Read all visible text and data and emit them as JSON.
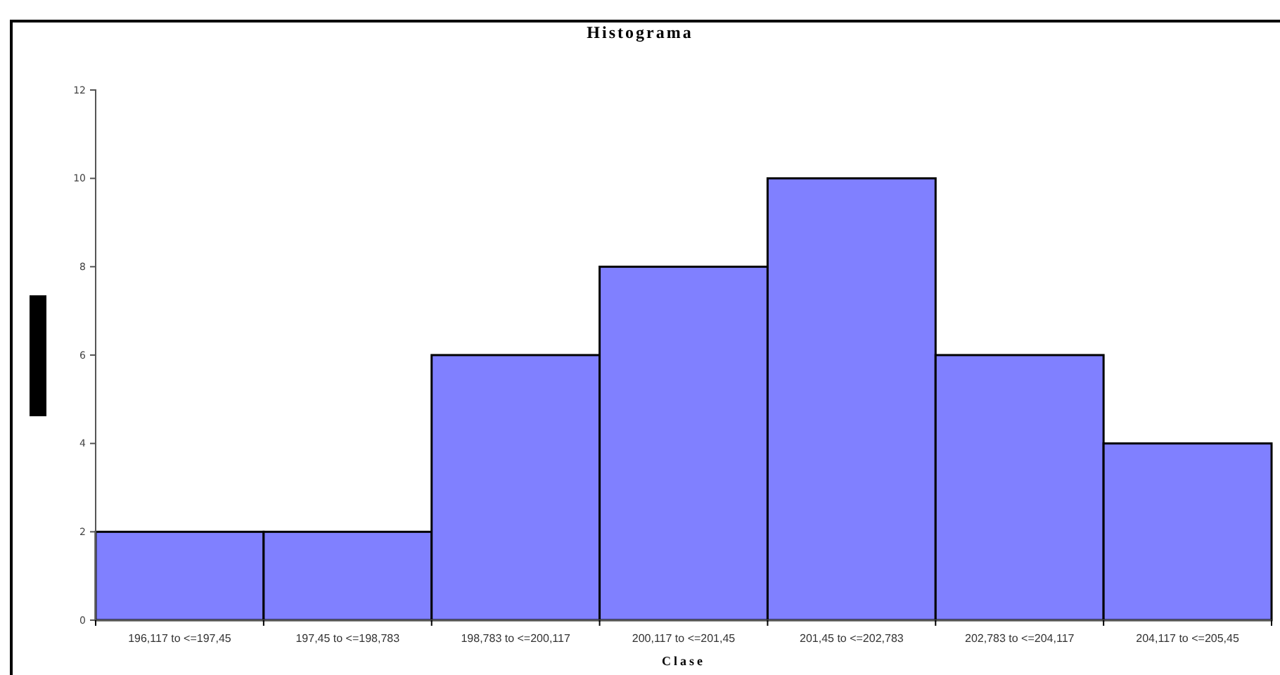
{
  "chart_data": {
    "type": "bar",
    "title": "Histograma",
    "xlabel": "Clase",
    "categories": [
      "196,117 to <=197,45",
      "197,45 to <=198,783",
      "198,783 to <=200,117",
      "200,117 to <=201,45",
      "201,45 to <=202,783",
      "202,783 to <=204,117",
      "204,117 to <=205,45"
    ],
    "values": [
      2,
      2,
      6,
      8,
      10,
      6,
      4
    ],
    "color": "#8080ff",
    "ylim": [
      0,
      12
    ],
    "yticks": [
      0,
      2,
      4,
      6,
      8,
      10,
      12
    ],
    "grid": false
  }
}
